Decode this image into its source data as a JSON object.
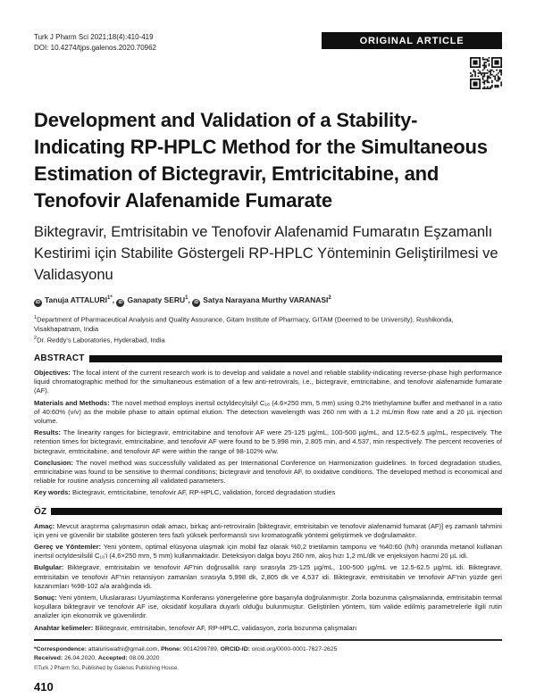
{
  "colors": {
    "badge_bg": "#101010",
    "bar": "#101010",
    "text": "#1b1b1b"
  },
  "icons": {
    "orcid_glyph": "iD",
    "qr": "qr-code"
  },
  "header": {
    "journal_line1": "Turk J Pharm Sci 2021;18(4):410-419",
    "journal_line2": "DOI: 10.4274/tjps.galenos.2020.70962",
    "article_type_badge": "ORIGINAL ARTICLE"
  },
  "title_en": "Development and Validation of a Stability-Indicating RP-HPLC Method for the Simultaneous Estimation of Bictegravir, Emtricitabine, and Tenofovir Alafenamide Fumarate",
  "title_tr": "Biktegravir, Emtrisitabin ve Tenofovir Alafenamid Fumaratın Eşzamanlı Kestirimi için Stabilite Göstergeli RP-HPLC Yönteminin Geliştirilmesi ve Validasyonu",
  "authors": [
    {
      "name": "Tanuja ATTALURI",
      "sup": "1*",
      "sep": ", "
    },
    {
      "name": "Ganapaty SERU",
      "sup": "1",
      "sep": ", "
    },
    {
      "name": "Satya Narayana Murthy VARANASI",
      "sup": "2",
      "sep": ""
    }
  ],
  "affiliations": [
    {
      "sup": "1",
      "text": "Department of Pharmaceutical Analysis and Quality Assurance, Gitam Institute of Pharmacy, GITAM (Deemed to be University), Rushikonda, Visakhapatnam, India"
    },
    {
      "sup": "2",
      "text": "Dr. Reddy's Laboratories, Hyderabad, India"
    }
  ],
  "abstract": {
    "heading": "ABSTRACT",
    "sections": [
      {
        "label": "Objectives:",
        "text": " The focal intent of the current research work is to develop and validate a novel and reliable stability-indicating reverse-phase high performance liquid chromatographic method for the simultaneous estimation of a few anti-retrovirals, i.e., bictegravir, emtricitabine, and tenofovir alafenamide fumarate (AF)."
      },
      {
        "label": "Materials and Methods:",
        "text": " The novel method employs inertsil octyldecylsilyl C₁₈ (4.6×250 mm, 5 mm) using 0.2% triethylamine buffer and methanol in a ratio of 40:60% (v/v) as the mobile phase to attain optimal elution. The detection wavelength was 260 nm with a 1.2 mL/min flow rate and a 20 µL injection volume."
      },
      {
        "label": "Results:",
        "text": " The linearity ranges for bictegravir, emtricitabine and tenofovir AF were 25-125 µg/mL, 100-500 µg/mL, and 12.5-62.5 µg/mL, respectively. The retention times for bictegravir, emtricitabine, and tenofovir AF were found to be 5.998 min, 2.805 min, and 4.537, min respectively. The percent recoveries of bictegravir, emtricitabine, and tenofovir AF were within the range of 98-102% w/w."
      },
      {
        "label": "Conclusion:",
        "text": " The novel method was successfully validated as per International Conference on Harmonization guidelines. In forced degradation studies, emtricitabine was found to be sensitive to thermal conditions; bictegravir and tenofovir AF, to oxidative conditions. The developed method is economical and reliable for routine analysis concerning all validated parameters."
      },
      {
        "label": "Key words:",
        "text": " Bictegravir, emtricitabine, tenofovir AF, RP-HPLC, validation, forced degradation studies"
      }
    ]
  },
  "oz": {
    "heading": "ÖZ",
    "sections": [
      {
        "label": "Amaç:",
        "text": " Mevcut araştırma çalışmasının odak amacı, birkaç anti-retroviralin [biktegravir, emtrisitabin ve tenofovir alafenamid fumarat (AF)] eş zamanlı tahmini için yeni ve güvenilir bir stabilite gösteren ters fazlı yüksek performanslı sıvı kromatografik yöntemi geliştirmek ve doğrulamaktır."
      },
      {
        "label": "Gereç ve Yöntemler:",
        "text": " Yeni yöntem, optimal elüsyona ulaşmak için mobil faz olarak %0,2 trietilamin tamponu ve %40:60 (h/h) oranında metanol kullanan inertsil octyldesilsilil C₁₈'i (4,6×250 mm, 5 mm) kullanmaktadır. Deteksiyon dalga boyu 260 nm, akış hızı 1,2 mL/dk ve enjeksiyon hacmi 20 µL idi."
      },
      {
        "label": "Bulgular:",
        "text": " Biktegravir, emtrisitabin ve tenofovir AF'nin doğrusallık ranjı sırasıyla 25-125 µg/mL, 100-500 µg/mL ve 12.5-62.5 µg/mL idi. Biktegravir, emtrisitabin ve tenofovir AF'nin retansiyon zamanları sırasıyla 5,998 dk, 2,805 dk ve 4,537 idi. Biktegravir, emtrisitabin ve tenofovir AF'nin yüzde geri kazanımları %98-102 a/a aralığında idi."
      },
      {
        "label": "Sonuç:",
        "text": " Yeni yöntem, Uluslararası Uyumlaştırma Konferansı yönergelerine göre başarıyla doğrulanmıştır. Zorla bozunma çalışmalarında, emtrisitabin termal koşullara biktegravir ve tenofovir AF ise, oksidatif koşullara duyarlı olduğu bulunmuştur. Geliştirilen yöntem, tüm valide edilmiş parametrelerle ilgili rutin analizler için ekonomik ve güvenilirdir."
      },
      {
        "label": "Anahtar kelimeler:",
        "text": " Biktegravir, emtrisitabin, tenofovir AF, RP-HPLC, validasyon, zorla bozunma çalışmaları"
      }
    ]
  },
  "footer": {
    "line1_parts": [
      {
        "b": "*Correspondence:",
        "t": " attaluriswathi@gmail.com, "
      },
      {
        "b": "Phone:",
        "t": " 9014299789, "
      },
      {
        "b": "ORCID-ID:",
        "t": " orcid.org/0000-0001-7627-2625"
      }
    ],
    "line2_parts": [
      {
        "b": "Received:",
        "t": " 26.04.2020, "
      },
      {
        "b": "Accepted:",
        "t": " 08.09.2020"
      }
    ],
    "copyright": "©Turk J Pharm Sci, Published by Galenos Publishing House.",
    "page_number": "410"
  }
}
